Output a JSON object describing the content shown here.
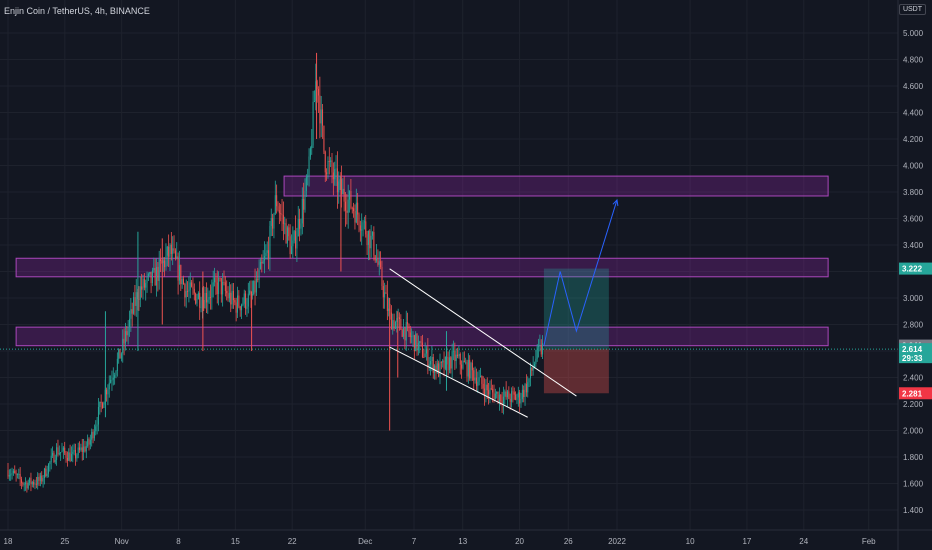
{
  "header": {
    "title": "Enjin Coin / TetherUS, 4h, BINANCE",
    "quote_currency": "USDT"
  },
  "colors": {
    "background": "#131722",
    "grid": "#1e222d",
    "up": "#26a69a",
    "down": "#ef5350",
    "zone_fill": "#9c27b0",
    "zone_border": "#ab47bc",
    "trendline": "#ffffff",
    "projection": "#2962ff",
    "target_zone": "#26a69a",
    "stop_zone": "#ef5350",
    "label_last": "#787b86",
    "label_current": "#26a69a",
    "label_resistance": "#26a69a",
    "label_stop": "#f23645"
  },
  "chart_data": {
    "type": "candlestick",
    "title": "Enjin Coin / TetherUS, 4h, BINANCE",
    "ylim": [
      1.3,
      5.1
    ],
    "y_ticks": [
      "1.400",
      "1.600",
      "1.800",
      "2.000",
      "2.200",
      "2.400",
      "2.600",
      "2.800",
      "3.000",
      "3.200",
      "3.400",
      "3.600",
      "3.800",
      "4.000",
      "4.200",
      "4.400",
      "4.600",
      "4.800",
      "5.000"
    ],
    "x_ticks": [
      "18",
      "25",
      "Nov",
      "8",
      "15",
      "22",
      "Dec",
      "7",
      "13",
      "20",
      "26",
      "2022",
      "10",
      "17",
      "24",
      "Feb"
    ],
    "price_path": [
      [
        "2021-10-18",
        1.7
      ],
      [
        "2021-10-20",
        1.6
      ],
      [
        "2021-10-22",
        1.62
      ],
      [
        "2021-10-24",
        1.85
      ],
      [
        "2021-10-26",
        1.8
      ],
      [
        "2021-10-28",
        1.9
      ],
      [
        "2021-10-30",
        2.3
      ],
      [
        "2021-11-01",
        2.6
      ],
      [
        "2021-11-03",
        3.05
      ],
      [
        "2021-11-05",
        3.15
      ],
      [
        "2021-11-07",
        3.35
      ],
      [
        "2021-11-09",
        3.05
      ],
      [
        "2021-11-11",
        3.0
      ],
      [
        "2021-11-13",
        3.1
      ],
      [
        "2021-11-15",
        2.95
      ],
      [
        "2021-11-17",
        3.0
      ],
      [
        "2021-11-19",
        3.35
      ],
      [
        "2021-11-20",
        3.75
      ],
      [
        "2021-11-22",
        3.35
      ],
      [
        "2021-11-24",
        3.9
      ],
      [
        "2021-11-25",
        4.7
      ],
      [
        "2021-11-26",
        4.05
      ],
      [
        "2021-11-28",
        3.8
      ],
      [
        "2021-11-30",
        3.65
      ],
      [
        "2021-12-02",
        3.4
      ],
      [
        "2021-12-04",
        2.85
      ],
      [
        "2021-12-06",
        2.75
      ],
      [
        "2021-12-08",
        2.6
      ],
      [
        "2021-12-10",
        2.45
      ],
      [
        "2021-12-12",
        2.55
      ],
      [
        "2021-12-14",
        2.45
      ],
      [
        "2021-12-16",
        2.3
      ],
      [
        "2021-12-18",
        2.25
      ],
      [
        "2021-12-20",
        2.25
      ],
      [
        "2021-12-21",
        2.35
      ],
      [
        "2021-12-22",
        2.55
      ],
      [
        "2021-12-23",
        2.64
      ]
    ],
    "spikes": [
      {
        "date": "2021-10-30",
        "high": 2.9,
        "low": 2.1
      },
      {
        "date": "2021-11-03",
        "high": 3.5,
        "low": 2.6
      },
      {
        "date": "2021-11-06",
        "high": 3.45,
        "low": 2.8
      },
      {
        "date": "2021-11-11",
        "high": 3.2,
        "low": 2.6
      },
      {
        "date": "2021-11-17",
        "high": 3.05,
        "low": 2.6
      },
      {
        "date": "2021-11-25",
        "high": 4.85,
        "low": 4.2
      },
      {
        "date": "2021-11-28",
        "high": 3.95,
        "low": 3.2
      },
      {
        "date": "2021-12-04",
        "high": 3.0,
        "low": 2.0
      },
      {
        "date": "2021-12-05",
        "high": 2.9,
        "low": 2.4
      },
      {
        "date": "2021-12-11",
        "high": 2.75,
        "low": 2.3
      }
    ],
    "resistance_zones": [
      {
        "from": "2021-11-21",
        "to": "2022-01-27",
        "low": 3.77,
        "high": 3.92
      },
      {
        "from": "2021-10-19",
        "to": "2022-01-27",
        "low": 3.16,
        "high": 3.3
      },
      {
        "from": "2021-10-19",
        "to": "2022-01-27",
        "low": 2.64,
        "high": 2.78
      }
    ],
    "wedge_lines": [
      {
        "from": [
          "2021-12-04",
          3.22
        ],
        "to": [
          "2021-12-27",
          2.26
        ]
      },
      {
        "from": [
          "2021-12-04",
          2.63
        ],
        "to": [
          "2021-12-21",
          2.1
        ]
      }
    ],
    "projection_path": [
      [
        "2021-12-23",
        2.64
      ],
      [
        "2021-12-25",
        3.2
      ],
      [
        "2021-12-27",
        2.75
      ],
      [
        "2022-01-01",
        3.74
      ]
    ],
    "position": {
      "from": "2021-12-23",
      "to": "2021-12-31",
      "entry": 2.614,
      "target": 3.222,
      "stop": 2.281
    },
    "current_price_line": 2.614,
    "price_labels": [
      {
        "value": 2.641,
        "text": "2.641",
        "kind": "last"
      },
      {
        "value": 2.614,
        "text": "2.614",
        "sub": "29:33",
        "kind": "current"
      },
      {
        "value": 3.222,
        "text": "3.222",
        "kind": "resistance"
      },
      {
        "value": 2.281,
        "text": "2.281",
        "kind": "stop"
      }
    ]
  }
}
